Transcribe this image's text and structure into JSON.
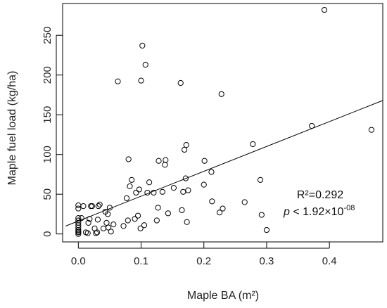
{
  "chart_data": {
    "type": "scatter",
    "xlabel": "Maple BA (m²)",
    "ylabel": "Maple fuel load (kg/ha)",
    "xlim": [
      -0.025,
      0.485
    ],
    "ylim": [
      -10,
      290
    ],
    "xticks": [
      0.0,
      0.1,
      0.2,
      0.3,
      0.4
    ],
    "xtick_labels": [
      "0.0",
      "0.1",
      "0.2",
      "0.3",
      "0.4"
    ],
    "yticks": [
      0,
      50,
      100,
      150,
      200,
      250
    ],
    "ytick_labels": [
      "0",
      "50",
      "100",
      "150",
      "200",
      "250"
    ],
    "grid": false,
    "legend": "none",
    "colors": {
      "points": "#000000",
      "line": "#000000",
      "axes": "#000000"
    },
    "regression_line": {
      "x": [
        -0.02,
        0.485
      ],
      "y": [
        10,
        168
      ]
    },
    "annotation": {
      "r2_text": "R²=0.292",
      "p_italic": "p",
      "p_main": " < 1.92×10",
      "p_exponent": "-08"
    },
    "points": [
      [
        0.0,
        0
      ],
      [
        0.0,
        2
      ],
      [
        0.0,
        3
      ],
      [
        0.0,
        5
      ],
      [
        0.0,
        8
      ],
      [
        0.0,
        11
      ],
      [
        0.0,
        14
      ],
      [
        0.0,
        17
      ],
      [
        0.0,
        20
      ],
      [
        0.0,
        32
      ],
      [
        0.0,
        36
      ],
      [
        0.005,
        20
      ],
      [
        0.008,
        35
      ],
      [
        0.012,
        2
      ],
      [
        0.015,
        1
      ],
      [
        0.016,
        14
      ],
      [
        0.018,
        19
      ],
      [
        0.02,
        35
      ],
      [
        0.022,
        35
      ],
      [
        0.026,
        7
      ],
      [
        0.028,
        1
      ],
      [
        0.03,
        2
      ],
      [
        0.031,
        18
      ],
      [
        0.032,
        35
      ],
      [
        0.034,
        37
      ],
      [
        0.04,
        7
      ],
      [
        0.043,
        28
      ],
      [
        0.045,
        14
      ],
      [
        0.047,
        25
      ],
      [
        0.048,
        8
      ],
      [
        0.05,
        33
      ],
      [
        0.052,
        3
      ],
      [
        0.056,
        12
      ],
      [
        0.063,
        192
      ],
      [
        0.072,
        10
      ],
      [
        0.077,
        45
      ],
      [
        0.079,
        17
      ],
      [
        0.08,
        94
      ],
      [
        0.082,
        60
      ],
      [
        0.085,
        68
      ],
      [
        0.09,
        19
      ],
      [
        0.092,
        52
      ],
      [
        0.095,
        23
      ],
      [
        0.097,
        56
      ],
      [
        0.099,
        7
      ],
      [
        0.1,
        193
      ],
      [
        0.102,
        237
      ],
      [
        0.105,
        11
      ],
      [
        0.107,
        213
      ],
      [
        0.11,
        52
      ],
      [
        0.113,
        65
      ],
      [
        0.12,
        52
      ],
      [
        0.125,
        17
      ],
      [
        0.127,
        33
      ],
      [
        0.128,
        92
      ],
      [
        0.134,
        53
      ],
      [
        0.138,
        87
      ],
      [
        0.139,
        93
      ],
      [
        0.143,
        26
      ],
      [
        0.152,
        58
      ],
      [
        0.163,
        190
      ],
      [
        0.165,
        30
      ],
      [
        0.167,
        53
      ],
      [
        0.169,
        106
      ],
      [
        0.171,
        70
      ],
      [
        0.172,
        112
      ],
      [
        0.173,
        15
      ],
      [
        0.175,
        55
      ],
      [
        0.2,
        62
      ],
      [
        0.201,
        92
      ],
      [
        0.212,
        78
      ],
      [
        0.213,
        41
      ],
      [
        0.225,
        27
      ],
      [
        0.228,
        176
      ],
      [
        0.23,
        32
      ],
      [
        0.265,
        40
      ],
      [
        0.278,
        113
      ],
      [
        0.29,
        68
      ],
      [
        0.292,
        24
      ],
      [
        0.3,
        5
      ],
      [
        0.372,
        136
      ],
      [
        0.392,
        282
      ],
      [
        0.467,
        131
      ]
    ]
  }
}
